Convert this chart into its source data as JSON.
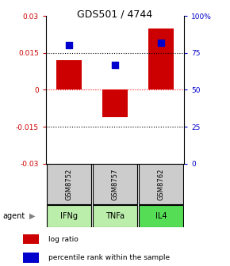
{
  "title": "GDS501 / 4744",
  "samples": [
    "GSM8752",
    "GSM8757",
    "GSM8762"
  ],
  "agents": [
    "IFNg",
    "TNFa",
    "IL4"
  ],
  "log_ratios": [
    0.012,
    -0.011,
    0.025
  ],
  "percentile_ranks": [
    0.8,
    0.67,
    0.82
  ],
  "bar_color": "#cc0000",
  "dot_color": "#0000cc",
  "ylim_left": [
    -0.03,
    0.03
  ],
  "ylim_right": [
    0,
    100
  ],
  "yticks_left": [
    -0.03,
    -0.015,
    0,
    0.015,
    0.03
  ],
  "yticks_right": [
    0,
    25,
    50,
    75,
    100
  ],
  "ytick_labels_left": [
    "-0.03",
    "-0.015",
    "0",
    "0.015",
    "0.03"
  ],
  "ytick_labels_right": [
    "0",
    "25",
    "50",
    "75",
    "100%"
  ],
  "left_tick_color": "#cc0000",
  "right_tick_color": "#0000cc",
  "bar_color_hex": "#cc0000",
  "dot_color_hex": "#0000cc",
  "sample_box_color": "#cccccc",
  "agent_colors": [
    "#bbeeaa",
    "#bbeeaa",
    "#55dd55"
  ],
  "bar_width": 0.55
}
